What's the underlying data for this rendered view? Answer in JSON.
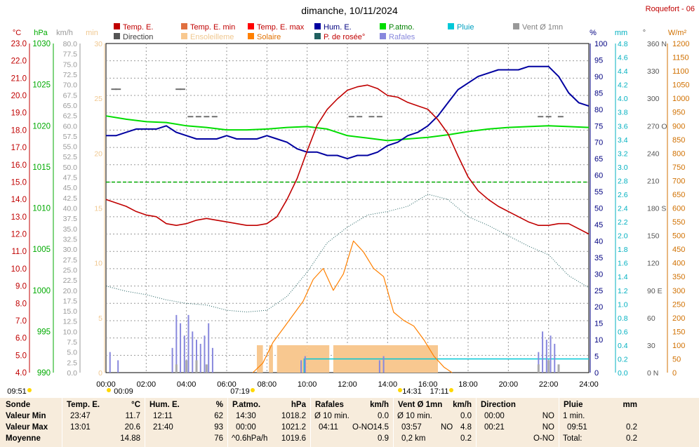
{
  "title": "dimanche, 10/11/2024",
  "location": "Roquefort - 06",
  "legend": [
    {
      "label": "Temp. E.",
      "color": "#c00000"
    },
    {
      "label": "Temp. E. min",
      "color": "#e07040"
    },
    {
      "label": "Temp. E. max",
      "color": "#ff0000"
    },
    {
      "label": "Hum. E.",
      "color": "#0000a0"
    },
    {
      "label": "P.atmo.",
      "color": "#00dd00"
    },
    {
      "label": "Pluie",
      "color": "#00c8d8"
    },
    {
      "label": "Vent Ø 1mn",
      "color": "#999999"
    },
    {
      "label": "Direction",
      "color": "#555555"
    },
    {
      "label": "Ensoleilleme",
      "color": "#f8c890"
    },
    {
      "label": "Solaire",
      "color": "#ff8000"
    },
    {
      "label": "P. de rosée°",
      "color": "#206060"
    },
    {
      "label": "Rafales",
      "color": "#8888dd"
    }
  ],
  "axes": {
    "temp": {
      "unit": "°C",
      "min": 4.0,
      "max": 23.0,
      "color": "#c00000",
      "ticks": [
        "23.0",
        "22.0",
        "21.0",
        "20.0",
        "19.0",
        "18.0",
        "17.0",
        "16.0",
        "15.0",
        "14.0",
        "13.0",
        "12.0",
        "11.0",
        "10.0",
        "9.0",
        "8.0",
        "7.0",
        "6.0",
        "5.0",
        "4.0"
      ]
    },
    "press": {
      "unit": "hPa",
      "min": 990,
      "max": 1030,
      "color": "#00aa00",
      "ticks": [
        "1030",
        "1025",
        "1020",
        "1015",
        "1010",
        "1005",
        "1000",
        "995",
        "990"
      ]
    },
    "wind": {
      "unit": "km/h",
      "min": 0,
      "max": 80,
      "color": "#888888",
      "ticks": [
        "80.0",
        "77.5",
        "75.0",
        "72.5",
        "70.0",
        "67.5",
        "65.0",
        "62.5",
        "60.0",
        "57.5",
        "55.0",
        "52.5",
        "50.0",
        "47.5",
        "45.0",
        "42.5",
        "40.0",
        "37.5",
        "35.0",
        "32.5",
        "30.0",
        "27.5",
        "25.0",
        "22.5",
        "20.0",
        "17.5",
        "15.0",
        "12.5",
        "10.0",
        "7.5",
        "5.0",
        "2.5",
        "0.0"
      ]
    },
    "sunmin": {
      "unit": "min",
      "min": 0,
      "max": 30,
      "color": "#f0c890",
      "ticks": [
        "30",
        "25",
        "20",
        "15",
        "10",
        "5",
        "0"
      ]
    },
    "hum": {
      "unit": "%",
      "min": 0,
      "max": 100,
      "color": "#000080",
      "ticks": [
        "100",
        "95",
        "90",
        "85",
        "80",
        "75",
        "70",
        "65",
        "60",
        "55",
        "50",
        "45",
        "40",
        "35",
        "30",
        "25",
        "20",
        "15",
        "10",
        "5",
        "0"
      ]
    },
    "rain": {
      "unit": "mm",
      "min": 0,
      "max": 4.8,
      "color": "#00b0c0",
      "ticks": [
        "4.8",
        "4.6",
        "4.4",
        "4.2",
        "4.0",
        "3.8",
        "3.6",
        "3.4",
        "3.2",
        "3.0",
        "2.8",
        "2.6",
        "2.4",
        "2.2",
        "2.0",
        "1.8",
        "1.6",
        "1.4",
        "1.2",
        "1.0",
        "0.8",
        "0.6",
        "0.4",
        "0.2",
        "0.0"
      ]
    },
    "dir": {
      "unit": "°",
      "color": "#555555",
      "ticks": [
        "360 N",
        "330",
        "300",
        "270 O",
        "240",
        "210",
        "180 S",
        "150",
        "120",
        "90 E",
        "60",
        "30",
        "0 N"
      ]
    },
    "solar": {
      "unit": "W/m²",
      "min": 0,
      "max": 1200,
      "color": "#d07000",
      "ticks": [
        "1200",
        "1150",
        "1100",
        "1050",
        "1000",
        "950",
        "900",
        "850",
        "800",
        "750",
        "700",
        "650",
        "600",
        "550",
        "500",
        "450",
        "400",
        "350",
        "300",
        "250",
        "200",
        "150",
        "100",
        "50",
        "0"
      ]
    }
  },
  "x_ticks": [
    "00:00",
    "02:00",
    "04:00",
    "06:00",
    "08:00",
    "10:00",
    "12:00",
    "14:00",
    "16:00",
    "18:00",
    "20:00",
    "22:00",
    "24:00"
  ],
  "markers": {
    "sunrise": "07:19",
    "sunset": "17:11",
    "first": "00:09",
    "tmax": "14:31",
    "left_time": "09:51"
  },
  "chart_data": {
    "type": "line",
    "title": "dimanche, 10/11/2024",
    "x_unit": "hours",
    "temp_x": [
      0,
      0.5,
      1,
      1.5,
      2,
      2.5,
      3,
      3.5,
      4,
      4.5,
      5,
      5.5,
      6,
      6.5,
      7,
      7.5,
      8,
      8.5,
      9,
      9.5,
      10,
      10.5,
      11,
      11.5,
      12,
      12.5,
      13,
      13.5,
      14,
      14.5,
      15,
      15.5,
      16,
      16.5,
      17,
      17.5,
      18,
      18.5,
      19,
      19.5,
      20,
      20.5,
      21,
      21.5,
      22,
      22.5,
      23,
      23.5,
      24
    ],
    "temp": [
      14.0,
      13.8,
      13.6,
      13.3,
      13.1,
      13.0,
      12.6,
      12.5,
      12.6,
      12.8,
      12.9,
      12.8,
      12.7,
      12.6,
      12.5,
      12.5,
      12.6,
      13.0,
      14.0,
      15.2,
      16.8,
      18.3,
      19.2,
      19.8,
      20.3,
      20.5,
      20.6,
      20.4,
      20.0,
      19.9,
      19.6,
      19.4,
      19.2,
      18.6,
      17.8,
      16.5,
      15.3,
      14.5,
      14.0,
      13.6,
      13.3,
      13.0,
      12.7,
      12.5,
      12.5,
      12.6,
      12.6,
      12.3,
      12.0
    ],
    "hum_x": [
      0,
      0.5,
      1,
      1.5,
      2,
      2.5,
      3,
      3.5,
      4,
      4.5,
      5,
      5.5,
      6,
      6.5,
      7,
      7.5,
      8,
      8.5,
      9,
      9.5,
      10,
      10.5,
      11,
      11.5,
      12,
      12.5,
      13,
      13.5,
      14,
      14.5,
      15,
      15.5,
      16,
      16.5,
      17,
      17.5,
      18,
      18.5,
      19,
      19.5,
      20,
      20.5,
      21,
      21.5,
      22,
      22.5,
      23,
      23.5,
      24
    ],
    "hum": [
      72,
      72,
      73,
      74,
      74,
      74,
      75,
      73,
      72,
      71,
      71,
      71,
      72,
      71,
      71,
      71,
      72,
      71,
      70,
      68,
      67,
      67,
      66,
      66,
      65,
      66,
      66,
      67,
      69,
      70,
      72,
      73,
      75,
      78,
      82,
      86,
      88,
      90,
      91,
      92,
      92,
      92,
      93,
      93,
      93,
      90,
      85,
      82,
      81
    ],
    "press_x": [
      0,
      1,
      2,
      3,
      4,
      5,
      6,
      7,
      8,
      9,
      10,
      11,
      12,
      13,
      14,
      15,
      16,
      17,
      18,
      19,
      20,
      21,
      22,
      23,
      24
    ],
    "press": [
      1021.2,
      1020.8,
      1020.5,
      1020.4,
      1020.0,
      1019.8,
      1019.5,
      1019.5,
      1019.6,
      1019.8,
      1019.9,
      1019.6,
      1018.8,
      1018.5,
      1018.2,
      1018.4,
      1018.6,
      1018.9,
      1019.3,
      1019.6,
      1019.8,
      1019.9,
      1020.0,
      1019.9,
      1019.8
    ],
    "dew_x": [
      0,
      1,
      2,
      3,
      4,
      5,
      6,
      7,
      8,
      9,
      10,
      11,
      12,
      13,
      14,
      15,
      16,
      17,
      18,
      19,
      20,
      21,
      22,
      23,
      24
    ],
    "dew": [
      9.0,
      8.7,
      8.5,
      8.2,
      8.0,
      7.9,
      7.6,
      7.5,
      7.6,
      8.4,
      9.8,
      11.5,
      12.4,
      13.1,
      13.3,
      13.6,
      14.3,
      14.0,
      13.0,
      12.5,
      11.9,
      11.3,
      10.8,
      9.6,
      8.9
    ],
    "solar_x": [
      7.3,
      7.8,
      8.3,
      8.8,
      9.3,
      9.8,
      10.3,
      10.8,
      11.3,
      11.8,
      12.3,
      12.8,
      13.3,
      13.8,
      14.3,
      14.8,
      15.3,
      15.8,
      16.3,
      16.8,
      17.2
    ],
    "solar": [
      0,
      35,
      110,
      160,
      210,
      260,
      340,
      380,
      300,
      360,
      480,
      440,
      380,
      350,
      220,
      190,
      170,
      120,
      60,
      20,
      0
    ],
    "gust_x": [
      0.2,
      0.6,
      3.3,
      3.5,
      3.7,
      3.9,
      4.1,
      4.3,
      4.5,
      4.7,
      4.9,
      5.1,
      5.3,
      9.7,
      9.9,
      13.6,
      13.8,
      21.5,
      21.7,
      21.9,
      22.1,
      22.3
    ],
    "gust": [
      5,
      3,
      6,
      14,
      12,
      9,
      14,
      10,
      8,
      7,
      9,
      12,
      6,
      3,
      4,
      3,
      4,
      5,
      10,
      8,
      9,
      7
    ],
    "wind_avg_x": [
      3.5,
      4.0,
      4.5,
      5.0,
      21.5,
      22.0,
      22.5
    ],
    "wind_avg": [
      2,
      3,
      3,
      2,
      2,
      3,
      2
    ],
    "direction_x": [
      0.4,
      0.6,
      3.6,
      3.8,
      4.2,
      4.6,
      5.0,
      5.4,
      12.2,
      12.6,
      13.2,
      13.6,
      21.6,
      22.0,
      22.6
    ],
    "direction": [
      310,
      310,
      310,
      310,
      280,
      280,
      280,
      280,
      280,
      280,
      280,
      280,
      280,
      280,
      280
    ],
    "rain_total_mm": 0.2,
    "rain_start": 9.85,
    "sunshine_blocks": [
      [
        7.5,
        7.8
      ],
      [
        8.1,
        8.3
      ],
      [
        8.5,
        10.0
      ],
      [
        10.0,
        11.1
      ],
      [
        11.3,
        16.5
      ]
    ],
    "sunshine_level_min": 2.5
  },
  "table": {
    "rows_labels": [
      "Sonde",
      "Valeur Min",
      "Valeur Max",
      "Moyenne"
    ],
    "temp": {
      "head": "Temp. E.",
      "unit": "°C",
      "min_t": "23:47",
      "min_v": "11.7",
      "max_t": "13:01",
      "max_v": "20.6",
      "avg": "14.88"
    },
    "hum": {
      "head": "Hum. E.",
      "unit": "%",
      "min_t": "12:11",
      "min_v": "62",
      "max_t": "21:40",
      "max_v": "93",
      "avg": "76"
    },
    "press": {
      "head": "P.atmo.",
      "unit": "hPa",
      "min_t": "14:30",
      "min_v": "1018.2",
      "max_t": "00:00",
      "max_v": "1021.2",
      "avg_l": "^0.6hPa/h",
      "avg": "1019.6"
    },
    "gust": {
      "head": "Rafales",
      "unit": "km/h",
      "r1_l": "Ø 10 min.",
      "r1_v": "0.0",
      "r2_t": "04:11",
      "r2_d": "O-NO",
      "r2_v": "14.5",
      "avg": "0.9"
    },
    "wind": {
      "head": "Vent Ø 1mn",
      "unit": "km/h",
      "r1_l": "Ø 10 min.",
      "r1_v": "0.0",
      "r2_t": "03:57",
      "r2_d": "NO",
      "r2_v": "4.8",
      "avg_l": "0,2 km",
      "avg": "0.2"
    },
    "dir": {
      "head": "Direction",
      "r1_t": "00:00",
      "r1_v": "NO",
      "r2_t": "00:21",
      "r2_v": "NO",
      "avg": "O-NO"
    },
    "rain": {
      "head": "Pluie",
      "unit": "mm",
      "r1_l": "1 min.",
      "r2_t": "09:51",
      "r2_v": "0.2",
      "avg_l": "Total:",
      "avg": "0.2"
    }
  }
}
